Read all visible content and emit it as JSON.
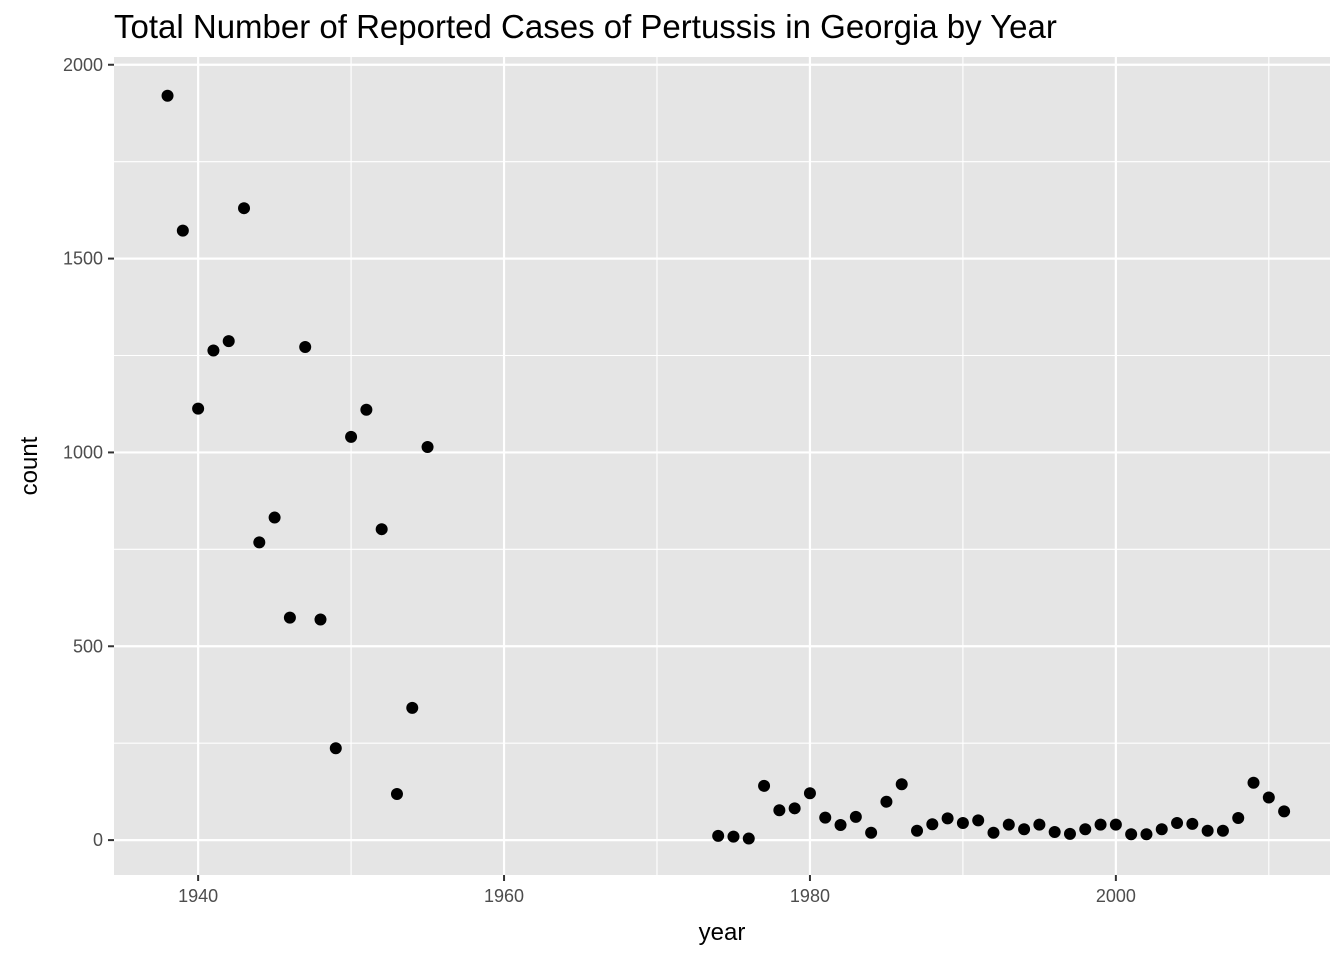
{
  "chart_data": {
    "type": "scatter",
    "title": "Total Number of Reported Cases of Pertussis in Georgia by Year",
    "xlabel": "year",
    "ylabel": "count",
    "xlim": [
      1934.5,
      2014
    ],
    "ylim": [
      -90,
      2020
    ],
    "x_ticks": [
      1940,
      1960,
      1980,
      2000
    ],
    "y_ticks": [
      0,
      500,
      1000,
      1500,
      2000
    ],
    "grid": true,
    "colors": {
      "panel": "#e5e5e5",
      "grid": "#ffffff",
      "point": "#000000",
      "tick_text": "#4d4d4d"
    },
    "points": [
      {
        "x": 1938,
        "y": 1920
      },
      {
        "x": 1939,
        "y": 1572
      },
      {
        "x": 1940,
        "y": 1113
      },
      {
        "x": 1941,
        "y": 1263
      },
      {
        "x": 1942,
        "y": 1287
      },
      {
        "x": 1943,
        "y": 1630
      },
      {
        "x": 1944,
        "y": 768
      },
      {
        "x": 1945,
        "y": 832
      },
      {
        "x": 1946,
        "y": 574
      },
      {
        "x": 1947,
        "y": 1272
      },
      {
        "x": 1948,
        "y": 569
      },
      {
        "x": 1949,
        "y": 237
      },
      {
        "x": 1950,
        "y": 1040
      },
      {
        "x": 1951,
        "y": 1110
      },
      {
        "x": 1952,
        "y": 802
      },
      {
        "x": 1953,
        "y": 119
      },
      {
        "x": 1954,
        "y": 341
      },
      {
        "x": 1955,
        "y": 1014
      },
      {
        "x": 1974,
        "y": 11
      },
      {
        "x": 1975,
        "y": 9
      },
      {
        "x": 1976,
        "y": 4
      },
      {
        "x": 1977,
        "y": 140
      },
      {
        "x": 1978,
        "y": 77
      },
      {
        "x": 1979,
        "y": 82
      },
      {
        "x": 1980,
        "y": 121
      },
      {
        "x": 1981,
        "y": 58
      },
      {
        "x": 1982,
        "y": 39
      },
      {
        "x": 1983,
        "y": 60
      },
      {
        "x": 1984,
        "y": 19
      },
      {
        "x": 1985,
        "y": 99
      },
      {
        "x": 1986,
        "y": 144
      },
      {
        "x": 1987,
        "y": 24
      },
      {
        "x": 1988,
        "y": 41
      },
      {
        "x": 1989,
        "y": 56
      },
      {
        "x": 1990,
        "y": 44
      },
      {
        "x": 1991,
        "y": 51
      },
      {
        "x": 1992,
        "y": 19
      },
      {
        "x": 1993,
        "y": 40
      },
      {
        "x": 1994,
        "y": 28
      },
      {
        "x": 1995,
        "y": 40
      },
      {
        "x": 1996,
        "y": 21
      },
      {
        "x": 1997,
        "y": 16
      },
      {
        "x": 1998,
        "y": 28
      },
      {
        "x": 1999,
        "y": 40
      },
      {
        "x": 2000,
        "y": 40
      },
      {
        "x": 2001,
        "y": 15
      },
      {
        "x": 2002,
        "y": 15
      },
      {
        "x": 2003,
        "y": 28
      },
      {
        "x": 2004,
        "y": 44
      },
      {
        "x": 2005,
        "y": 42
      },
      {
        "x": 2006,
        "y": 24
      },
      {
        "x": 2007,
        "y": 24
      },
      {
        "x": 2008,
        "y": 57
      },
      {
        "x": 2009,
        "y": 148
      },
      {
        "x": 2010,
        "y": 110
      },
      {
        "x": 2011,
        "y": 74
      }
    ]
  }
}
